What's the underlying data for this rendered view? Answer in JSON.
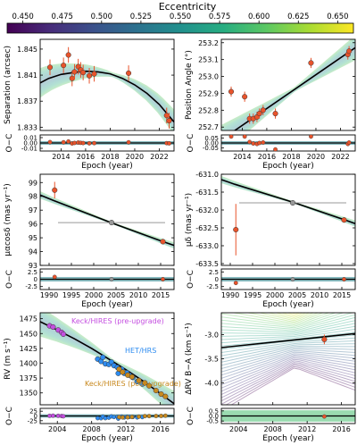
{
  "colorbar": {
    "label": "Eccentricity",
    "ticks": [
      "0.450",
      "0.475",
      "0.500",
      "0.525",
      "0.550",
      "0.575",
      "0.600",
      "0.625",
      "0.650"
    ],
    "range": [
      0.44,
      0.66
    ]
  },
  "colors": {
    "data_point": "#e8532b",
    "data_edge": "#9b2c0f",
    "model_line": "#000000",
    "keck_pre": "#c44fe0",
    "het": "#2e8cf0",
    "keck_post": "#c8891f",
    "mean_point": "#999999"
  },
  "chart_data": [
    {
      "type": "scatter",
      "panel": "separation",
      "ylabel": "Separation (arcsec)",
      "resid_label": "O−C",
      "xlabel": "Epoch (year)",
      "xlim": [
        2012.3,
        2023.2
      ],
      "ylim": [
        1.8325,
        1.8465
      ],
      "resid_ylim": [
        -0.015,
        0.015
      ],
      "xticks": [
        "2014",
        "2016",
        "2018",
        "2020",
        "2022"
      ],
      "yticks": [
        "1.833",
        "1.837",
        "1.841",
        "1.845"
      ],
      "resid_yticks": [
        "-0.01",
        "0.00",
        "0.01"
      ],
      "model": [
        [
          2012.3,
          1.8398
        ],
        [
          2013,
          1.8405
        ],
        [
          2014,
          1.8411
        ],
        [
          2015,
          1.8414
        ],
        [
          2016,
          1.8416
        ],
        [
          2017,
          1.8415
        ],
        [
          2018,
          1.8412
        ],
        [
          2019,
          1.8405
        ],
        [
          2020,
          1.8395
        ],
        [
          2021,
          1.8382
        ],
        [
          2022,
          1.8365
        ],
        [
          2023.2,
          1.8338
        ]
      ],
      "points": [
        {
          "x": 2013.1,
          "y": 1.8422,
          "err": 0.0012
        },
        {
          "x": 2014.2,
          "y": 1.8425,
          "err": 0.0012
        },
        {
          "x": 2014.6,
          "y": 1.8441,
          "err": 0.0012
        },
        {
          "x": 2014.9,
          "y": 1.8405,
          "err": 0.0012
        },
        {
          "x": 2015.1,
          "y": 1.8415,
          "err": 0.0012
        },
        {
          "x": 2015.4,
          "y": 1.8423,
          "err": 0.0012
        },
        {
          "x": 2015.6,
          "y": 1.8418,
          "err": 0.0012
        },
        {
          "x": 2015.8,
          "y": 1.8414,
          "err": 0.0012
        },
        {
          "x": 2016.3,
          "y": 1.8409,
          "err": 0.0012
        },
        {
          "x": 2016.7,
          "y": 1.8412,
          "err": 0.0012
        },
        {
          "x": 2019.5,
          "y": 1.8413,
          "err": 0.0012
        },
        {
          "x": 2022.6,
          "y": 1.8348,
          "err": 0.0012
        },
        {
          "x": 2022.8,
          "y": 1.834,
          "err": 0.0012
        }
      ]
    },
    {
      "type": "scatter",
      "panel": "position_angle",
      "ylabel": "Position Angle (°)",
      "resid_label": "O−C",
      "xlabel": "Epoch (year)",
      "xlim": [
        2012.3,
        2023.2
      ],
      "ylim": [
        252.68,
        253.22
      ],
      "resid_ylim": [
        -0.08,
        0.08
      ],
      "xticks": [
        "2014",
        "2016",
        "2018",
        "2020",
        "2022"
      ],
      "yticks": [
        "252.7",
        "252.8",
        "252.9",
        "253.0",
        "253.1",
        "253.2"
      ],
      "resid_yticks": [
        "-0.05",
        "0.00",
        "0.05"
      ],
      "model": [
        [
          2012.3,
          252.625
        ],
        [
          2023.2,
          253.17
        ]
      ],
      "points": [
        {
          "x": 2013.1,
          "y": 252.91,
          "err": 0.03
        },
        {
          "x": 2014.2,
          "y": 252.88,
          "err": 0.03
        },
        {
          "x": 2014.6,
          "y": 252.75,
          "err": 0.03
        },
        {
          "x": 2014.9,
          "y": 252.75,
          "err": 0.03
        },
        {
          "x": 2015.2,
          "y": 252.76,
          "err": 0.03
        },
        {
          "x": 2015.4,
          "y": 252.78,
          "err": 0.03
        },
        {
          "x": 2015.7,
          "y": 252.8,
          "err": 0.03
        },
        {
          "x": 2016.7,
          "y": 252.78,
          "err": 0.03
        },
        {
          "x": 2019.6,
          "y": 253.08,
          "err": 0.03
        },
        {
          "x": 2022.6,
          "y": 253.13,
          "err": 0.03
        },
        {
          "x": 2022.7,
          "y": 253.15,
          "err": 0.03
        }
      ]
    },
    {
      "type": "scatter",
      "panel": "pm_ra",
      "ylabel": "μαcosδ (mas yr⁻¹)",
      "resid_label": "O−C",
      "xlabel": "Epoch (year)",
      "xlim": [
        1988,
        2018
      ],
      "ylim": [
        93,
        99.6
      ],
      "resid_ylim": [
        -3.5,
        3.5
      ],
      "xticks": [
        "1990",
        "1995",
        "2000",
        "2005",
        "2010",
        "2015"
      ],
      "yticks": [
        "93",
        "94",
        "95",
        "96",
        "97",
        "98",
        "99"
      ],
      "resid_yticks": [
        "-2.5",
        "0",
        "2.5"
      ],
      "model": [
        [
          1988,
          98.1
        ],
        [
          1991,
          97.7
        ],
        [
          2004,
          96.08
        ],
        [
          2015.5,
          94.72
        ],
        [
          2018,
          94.45
        ]
      ],
      "points": [
        {
          "x": 1991.25,
          "y": 98.45,
          "err": 0.6,
          "color": "#e8532b"
        },
        {
          "x": 2004,
          "y": 96.1,
          "err": 0.05,
          "xerr": 12,
          "color": "#999999"
        },
        {
          "x": 2015.5,
          "y": 94.72,
          "err": 0.05,
          "color": "#e8532b"
        }
      ]
    },
    {
      "type": "scatter",
      "panel": "pm_dec",
      "ylabel": "μδ (mas yr⁻¹)",
      "resid_label": "O−C",
      "xlabel": "Epoch (year)",
      "xlim": [
        1988,
        2018
      ],
      "ylim": [
        -633.55,
        -631.0
      ],
      "resid_ylim": [
        -3.5,
        3.5
      ],
      "xticks": [
        "1990",
        "1995",
        "2000",
        "2005",
        "2010",
        "2015"
      ],
      "yticks": [
        "-631.0",
        "-631.5",
        "-632.0",
        "-632.5",
        "-633.0",
        "-633.5"
      ],
      "resid_yticks": [
        "-2.5",
        "0",
        "2.5"
      ],
      "model": [
        [
          1988,
          -631.15
        ],
        [
          1991,
          -631.28
        ],
        [
          2004,
          -631.78
        ],
        [
          2015.5,
          -632.27
        ],
        [
          2018,
          -632.38
        ]
      ],
      "points": [
        {
          "x": 1991.25,
          "y": -632.55,
          "err": 0.72,
          "color": "#e8532b"
        },
        {
          "x": 2004,
          "y": -631.8,
          "err": 0.02,
          "xerr": 12,
          "color": "#999999"
        },
        {
          "x": 2015.5,
          "y": -632.28,
          "err": 0.02,
          "color": "#e8532b"
        }
      ]
    },
    {
      "type": "scatter",
      "panel": "rv",
      "ylabel": "RV (m s⁻¹)",
      "resid_label": "O−C",
      "xlabel": "Epoch (year)",
      "xlim": [
        2002,
        2017.6
      ],
      "ylim": [
        1330,
        1485
      ],
      "resid_ylim": [
        -40,
        40
      ],
      "xticks": [
        "2004",
        "2008",
        "2012",
        "2016"
      ],
      "yticks": [
        "1350",
        "1375",
        "1400",
        "1425",
        "1450",
        "1475"
      ],
      "resid_yticks": [
        "-25",
        "0",
        "25"
      ],
      "series_labels": [
        "Keck/HIRES (pre-upgrade)",
        "HET/HRS",
        "Keck/HIRES (post-upgrade)"
      ],
      "model": [
        [
          2002,
          1470
        ],
        [
          2004,
          1456
        ],
        [
          2006,
          1441
        ],
        [
          2008,
          1425
        ],
        [
          2010,
          1407
        ],
        [
          2012,
          1389
        ],
        [
          2014,
          1370
        ],
        [
          2016,
          1349
        ],
        [
          2017.6,
          1332
        ]
      ],
      "series": [
        {
          "name": "Keck/HIRES (pre-upgrade)",
          "color": "#c44fe0",
          "points": [
            [
              2003.1,
              1463
            ],
            [
              2003.5,
              1461
            ],
            [
              2004.1,
              1456
            ],
            [
              2004.5,
              1452
            ],
            [
              2004.7,
              1449
            ]
          ]
        },
        {
          "name": "HET/HRS",
          "color": "#2e8cf0",
          "points": [
            [
              2008.7,
              1407
            ],
            [
              2009.1,
              1403
            ],
            [
              2009.3,
              1410
            ],
            [
              2009.6,
              1399
            ],
            [
              2010.0,
              1398
            ],
            [
              2010.3,
              1402
            ],
            [
              2010.6,
              1396
            ],
            [
              2011.0,
              1393
            ],
            [
              2011.1,
              1383
            ],
            [
              2011.5,
              1390
            ],
            [
              2011.8,
              1383
            ],
            [
              2012.1,
              1384
            ],
            [
              2012.4,
              1380
            ],
            [
              2012.8,
              1376
            ],
            [
              2013.3,
              1369
            ],
            [
              2013.9,
              1365
            ]
          ]
        },
        {
          "name": "Keck/HIRES (post-upgrade)",
          "color": "#c8891f",
          "points": [
            [
              2011.2,
              1390
            ],
            [
              2011.6,
              1385
            ],
            [
              2012.2,
              1380
            ],
            [
              2012.7,
              1377
            ],
            [
              2013.5,
              1371
            ],
            [
              2014.2,
              1367
            ],
            [
              2014.7,
              1362
            ],
            [
              2015.5,
              1354
            ],
            [
              2016.1,
              1348
            ],
            [
              2016.6,
              1344
            ]
          ]
        }
      ]
    },
    {
      "type": "scatter",
      "panel": "delta_rv",
      "ylabel": "ΔRV B−A (km s⁻¹)",
      "resid_label": "O−C",
      "xlabel": "Epoch (year)",
      "xlim": [
        2002,
        2017.6
      ],
      "ylim": [
        -4.45,
        -2.55
      ],
      "resid_ylim": [
        -0.75,
        0.75
      ],
      "xticks": [
        "2004",
        "2008",
        "2012",
        "2016"
      ],
      "yticks": [
        "-4.0",
        "-3.5",
        "-3.0"
      ],
      "resid_yticks": [
        "-0.5",
        "0.0",
        "0.5"
      ],
      "model": [
        [
          2002,
          -3.27
        ],
        [
          2017.6,
          -2.98
        ]
      ],
      "points": [
        {
          "x": 2014.0,
          "y": -3.1,
          "err": 0.1
        }
      ]
    }
  ]
}
